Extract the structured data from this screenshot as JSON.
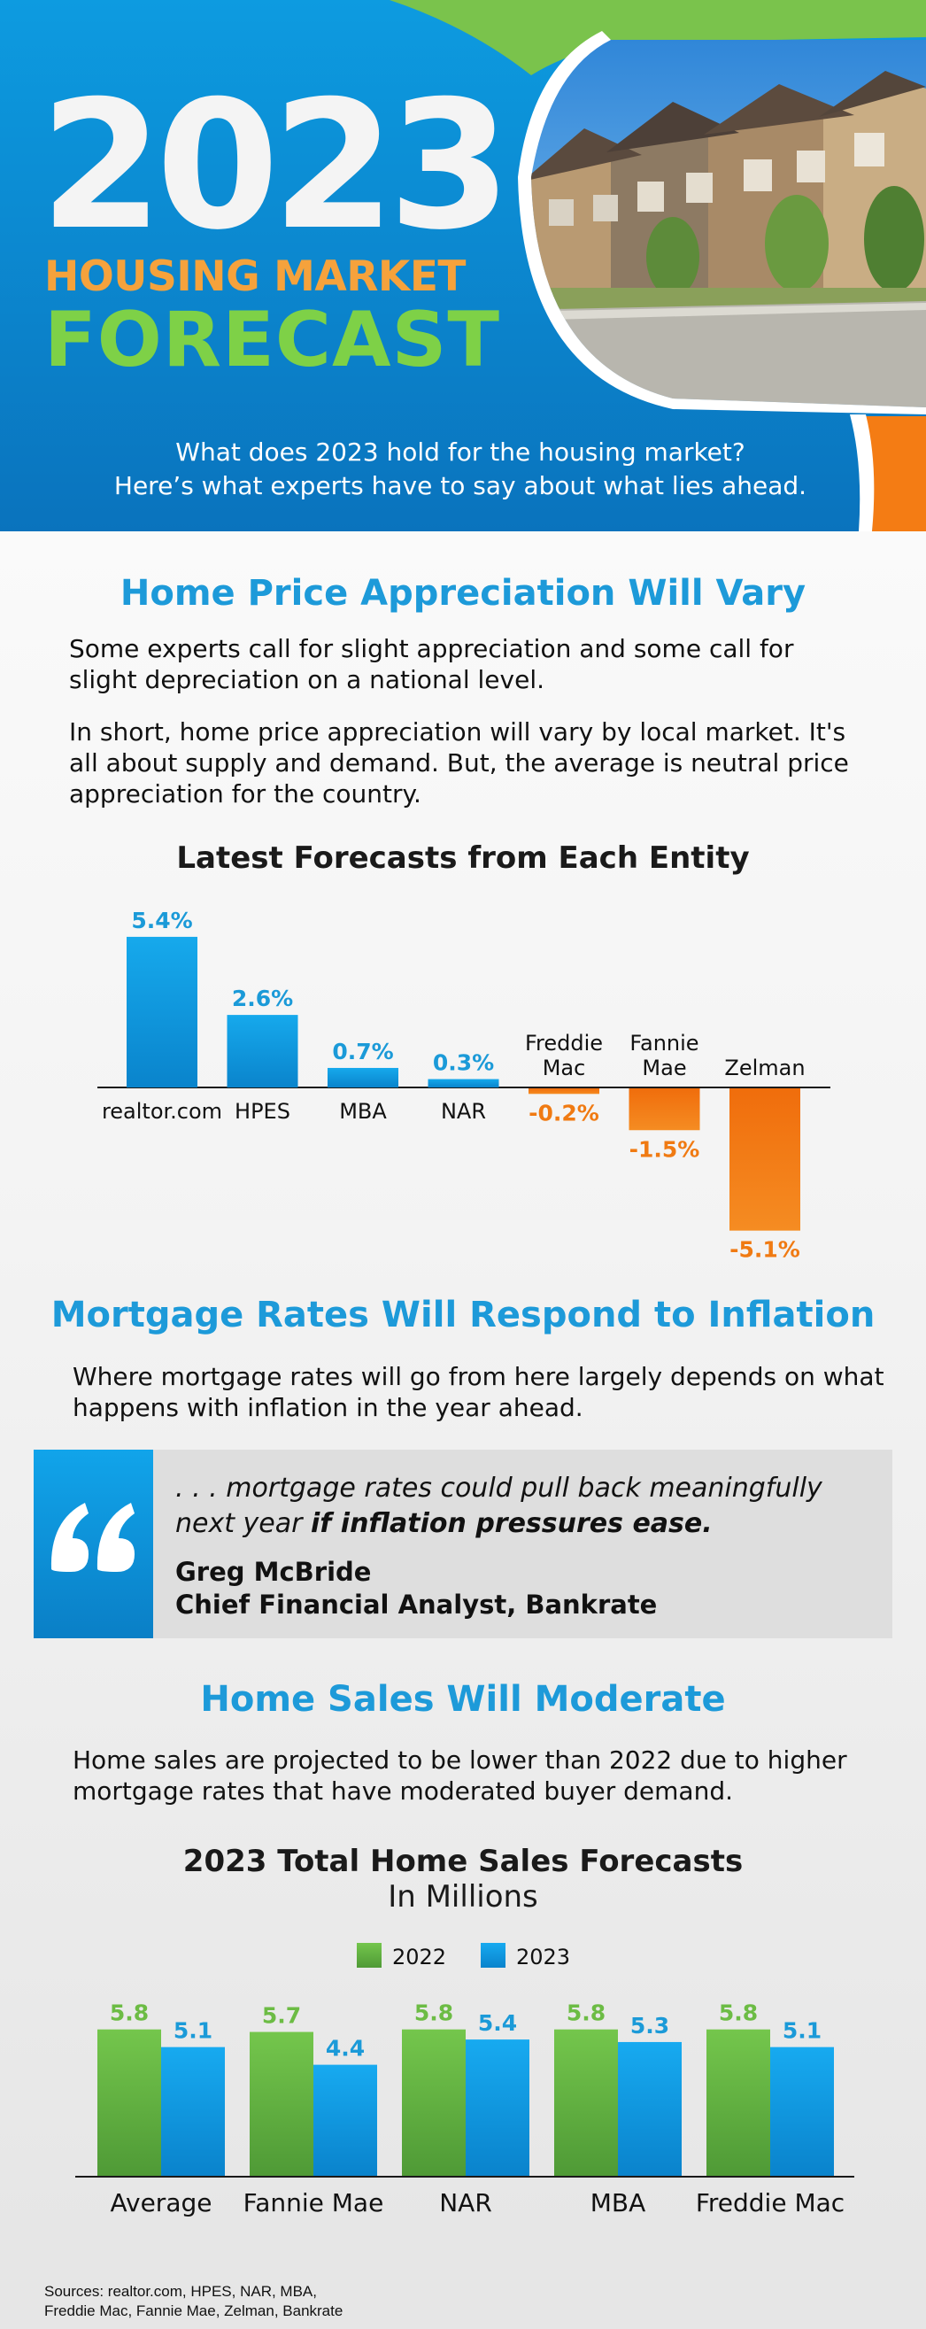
{
  "header": {
    "year": "2023",
    "title_line1": "HOUSING MARKET",
    "title_line2": "FORECAST",
    "intro_line1": "What does 2023 hold for the housing market?",
    "intro_line2": "Here’s what experts have to say about what lies ahead.",
    "photo": "suburban-townhouses-photo"
  },
  "section1": {
    "heading": "Home Price Appreciation Will Vary",
    "para1": "Some experts call for slight appreciation and some call for slight depreciation on a national level.",
    "para2": "In short, home price appreciation will vary by local market. It's all about supply and demand. But, the average is neutral price appreciation for the country.",
    "chart_title": "Latest Forecasts from Each Entity"
  },
  "section2": {
    "heading": "Mortgage Rates Will Respond to Inflation",
    "para": "Where mortgage rates will go from here largely depends on what happens with inflation in the year ahead.",
    "quote_part1": ". . . mortgage rates could pull back meaningfully next year",
    "quote_part2": "if inflation pressures ease.",
    "author_name": "Greg McBride",
    "author_title": "Chief Financial Analyst, Bankrate",
    "quote_icon": "quotation-mark-icon"
  },
  "section3": {
    "heading": "Home Sales Will Moderate",
    "para": "Home sales are projected to be lower than 2022 due to higher mortgage rates that have moderated buyer demand.",
    "chart_title": "2023 Total Home Sales Forecasts",
    "chart_subtitle": "In Millions"
  },
  "sources_line1": "Sources: realtor.com, HPES, NAR, MBA,",
  "sources_line2": "Freddie Mac, Fannie Mae, Zelman, Bankrate",
  "colors": {
    "blue": "#0e95dc",
    "green": "#6cc04a",
    "orange": "#f47c14",
    "positive_bar": "#0e93d8",
    "negative_bar": "#f0780f"
  },
  "chart_data": [
    {
      "type": "bar",
      "title": "Latest Forecasts from Each Entity",
      "categories": [
        "realtor.com",
        "HPES",
        "MBA",
        "NAR",
        "Freddie Mac",
        "Fannie Mae",
        "Zelman"
      ],
      "values": [
        5.4,
        2.6,
        0.7,
        0.3,
        -0.2,
        -1.5,
        -5.1
      ],
      "value_labels": [
        "5.4%",
        "2.6%",
        "0.7%",
        "0.3%",
        "-0.2%",
        "-1.5%",
        "-5.1%"
      ],
      "ylim": [
        -5.1,
        5.4
      ],
      "grid": false
    },
    {
      "type": "bar",
      "title": "2023 Total Home Sales Forecasts",
      "subtitle": "In Millions",
      "categories": [
        "Average",
        "Fannie Mae",
        "NAR",
        "MBA",
        "Freddie Mac"
      ],
      "series": [
        {
          "name": "2022",
          "values": [
            5.8,
            5.7,
            5.8,
            5.8,
            5.8
          ],
          "labels": [
            "5.8",
            "5.7",
            "5.8",
            "5.8",
            "5.8"
          ]
        },
        {
          "name": "2023",
          "values": [
            5.1,
            4.4,
            5.4,
            5.3,
            5.1
          ],
          "labels": [
            "5.1",
            "4.4",
            "5.4",
            "5.3",
            "5.1"
          ]
        }
      ],
      "legend": "top-center",
      "grid": false
    }
  ]
}
